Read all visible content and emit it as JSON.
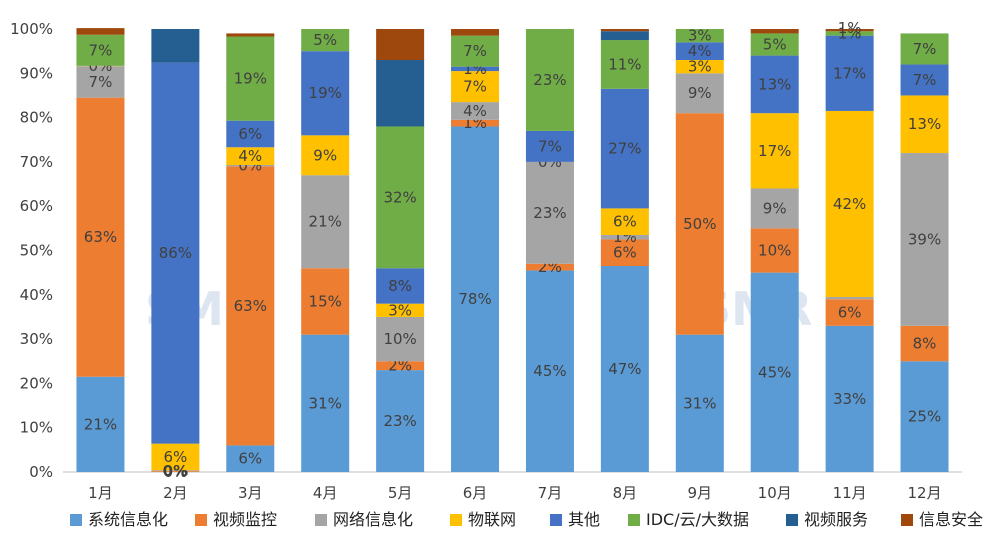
{
  "chart_data": {
    "type": "bar",
    "stacked": true,
    "normalized": true,
    "categories": [
      "1月",
      "2月",
      "3月",
      "4月",
      "5月",
      "6月",
      "7月",
      "8月",
      "9月",
      "10月",
      "11月",
      "12月"
    ],
    "ylim": [
      0,
      100
    ],
    "yticks": [
      "0%",
      "10%",
      "20%",
      "30%",
      "40%",
      "50%",
      "60%",
      "70%",
      "80%",
      "90%",
      "100%"
    ],
    "grid": false,
    "legend_position": "bottom",
    "watermark": "SMR",
    "series": [
      {
        "name": "系统信息化",
        "color": "#5b9bd5",
        "values": [
          21.5,
          0,
          6,
          31,
          23,
          78,
          45.5,
          46.5,
          31,
          45,
          33,
          25
        ],
        "labels": [
          "21%",
          "0%",
          "6%",
          "31%",
          "23%",
          "78%",
          "45%",
          "47%",
          "31%",
          "45%",
          "33%",
          "25%"
        ]
      },
      {
        "name": "视频监控",
        "color": "#ed7d31",
        "values": [
          63,
          0.2,
          63,
          15,
          2,
          1.5,
          1.5,
          6,
          50,
          10,
          6,
          8
        ],
        "labels": [
          "63%",
          "0%",
          "63%",
          "15%",
          "2%",
          "1%",
          "2%",
          "6%",
          "50%",
          "10%",
          "6%",
          "8%"
        ]
      },
      {
        "name": "网络信息化",
        "color": "#a5a5a5",
        "values": [
          7,
          0.2,
          0.3,
          21,
          10,
          4,
          23,
          1,
          9,
          9,
          0.5,
          39
        ],
        "labels": [
          "7%",
          "0%",
          "0%",
          "21%",
          "10%",
          "4%",
          "23%",
          "1%",
          "9%",
          "9%",
          "",
          "39%"
        ]
      },
      {
        "name": "物联网",
        "color": "#ffc000",
        "values": [
          0.1,
          6,
          4,
          9,
          3,
          7,
          0,
          6,
          3,
          17,
          42,
          13
        ],
        "labels": [
          "",
          "6%",
          "4%",
          "9%",
          "3%",
          "7%",
          "0%",
          "6%",
          "3%",
          "17%",
          "42%",
          "13%"
        ]
      },
      {
        "name": "其他",
        "color": "#4472c4",
        "values": [
          0.1,
          86,
          6,
          19,
          8,
          1,
          7,
          27,
          4,
          13,
          17,
          7
        ],
        "labels": [
          "0%",
          "86%",
          "6%",
          "19%",
          "8%",
          "1%",
          "7%",
          "27%",
          "4%",
          "13%",
          "17%",
          "7%"
        ]
      },
      {
        "name": "IDC/云/大数据",
        "color": "#70ad47",
        "values": [
          7,
          0,
          19,
          5,
          32,
          7,
          23,
          11,
          3,
          5,
          1,
          7
        ],
        "labels": [
          "7%",
          "",
          "19%",
          "5%",
          "32%",
          "7%",
          "23%",
          "11%",
          "3%",
          "5%",
          "1%",
          "7%"
        ]
      },
      {
        "name": "视频服务",
        "color": "#255e91",
        "values": [
          0,
          7.6,
          0,
          0,
          15,
          0,
          0,
          2,
          0,
          0,
          0,
          0
        ],
        "labels": [
          "",
          "",
          "",
          "",
          "",
          "",
          "",
          "",
          "",
          "",
          "",
          ""
        ]
      },
      {
        "name": "信息安全",
        "color": "#9e480e",
        "values": [
          1.5,
          0,
          0.7,
          0,
          7,
          1.5,
          0,
          0.5,
          0,
          1,
          0.5,
          0
        ],
        "labels": [
          "",
          "",
          "",
          "",
          "",
          "",
          "",
          "",
          "",
          "",
          "",
          ""
        ]
      }
    ],
    "extra_labels": [
      {
        "category_index": 1,
        "text": "0%"
      },
      {
        "category_index": 10,
        "text": "1%"
      }
    ]
  }
}
